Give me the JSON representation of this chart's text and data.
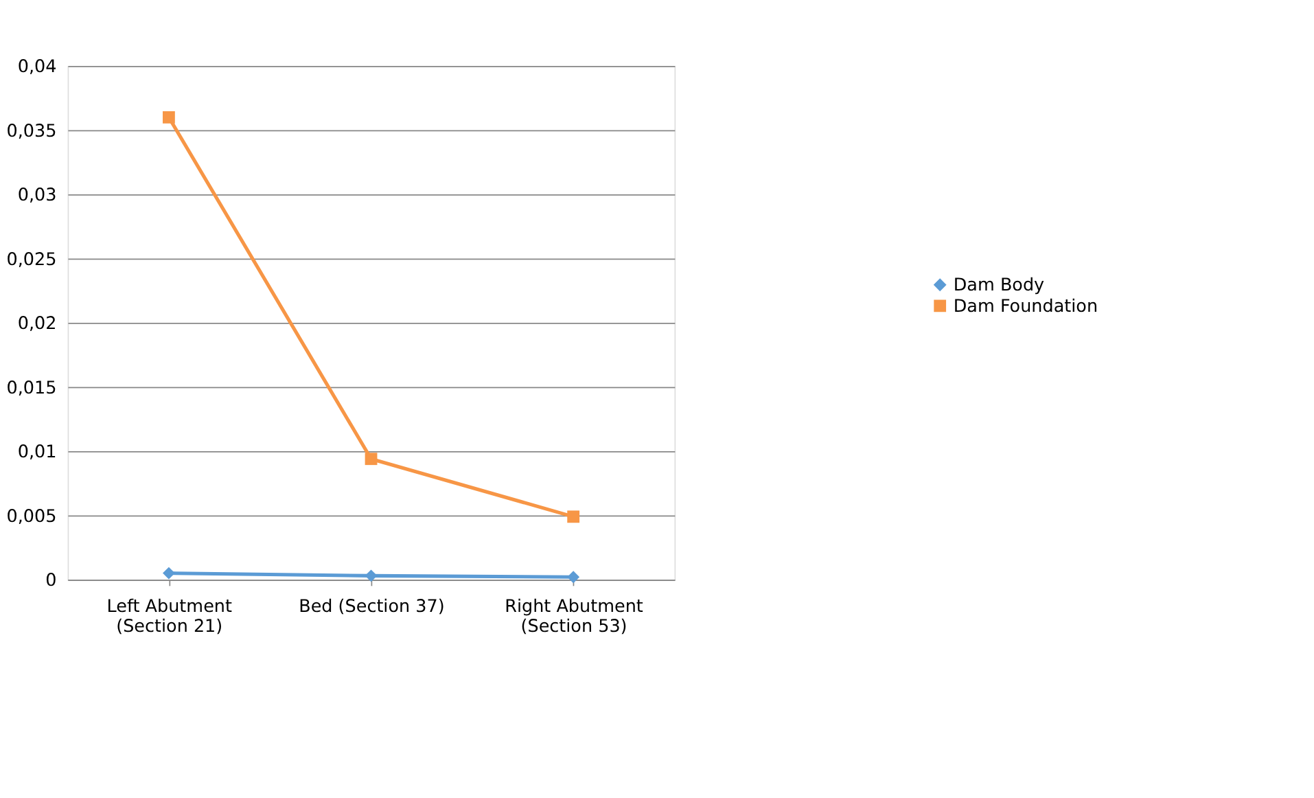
{
  "chart_data": {
    "type": "line",
    "categories": [
      "Left Abutment (Section 21)",
      "Bed (Section 37)",
      "Right Abutment (Section 53)"
    ],
    "series": [
      {
        "name": "Dam Body",
        "color": "#5b9bd5",
        "marker": "diamond",
        "values": [
          0.0005,
          0.0003,
          0.0002
        ]
      },
      {
        "name": "Dam Foundation",
        "color": "#f79646",
        "marker": "square",
        "values": [
          0.036,
          0.0094,
          0.0049
        ]
      }
    ],
    "ylim": [
      0,
      0.04
    ],
    "yticks": [
      0,
      {
        "value": 0.005,
        "label": "0,005"
      },
      {
        "value": 0.01,
        "label": "0,01"
      },
      {
        "value": 0.015,
        "label": "0,015"
      },
      {
        "value": 0.02,
        "label": "0,02"
      },
      {
        "value": 0.025,
        "label": "0,025"
      },
      {
        "value": 0.03,
        "label": "0,03"
      },
      {
        "value": 0.035,
        "label": "0,035"
      },
      {
        "value": 0.04,
        "label": "0,04"
      }
    ],
    "grid": "y",
    "legend": "right",
    "line_style": "solid"
  }
}
